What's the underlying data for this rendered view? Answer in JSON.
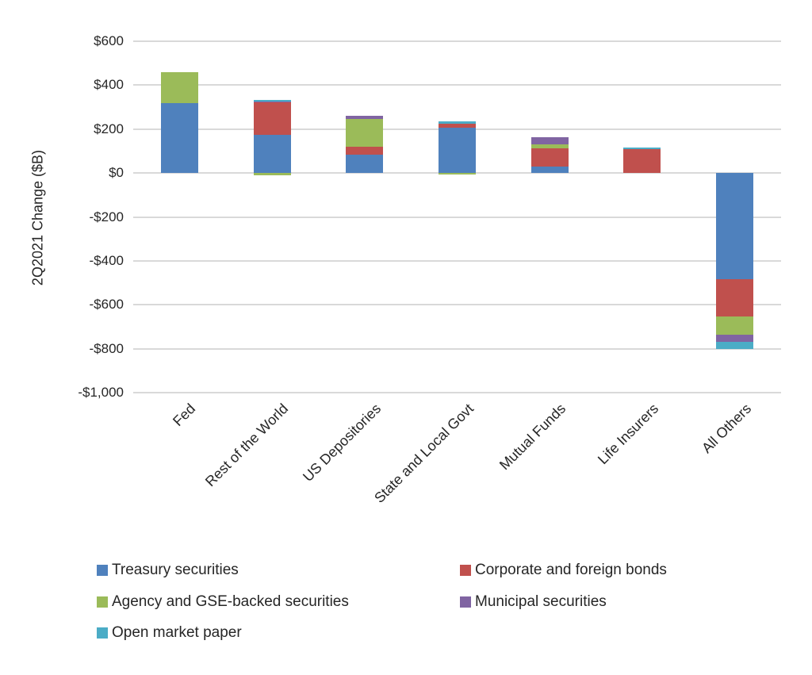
{
  "chart_data": {
    "type": "bar",
    "stacked": true,
    "title": "",
    "ylabel": "2Q2021 Change ($B)",
    "xlabel": "",
    "ylim": [
      -1000,
      600
    ],
    "ytick_step": 200,
    "yticks": [
      {
        "value": 600,
        "label": "$600"
      },
      {
        "value": 400,
        "label": "$400"
      },
      {
        "value": 200,
        "label": "$200"
      },
      {
        "value": 0,
        "label": "$0"
      },
      {
        "value": -200,
        "label": "-$200"
      },
      {
        "value": -400,
        "label": "-$400"
      },
      {
        "value": -600,
        "label": "-$600"
      },
      {
        "value": -800,
        "label": "-$800"
      },
      {
        "value": -1000,
        "label": "-$1,000"
      }
    ],
    "grid": true,
    "legend_position": "bottom",
    "categories": [
      "Fed",
      "Rest of the World",
      "US Depositories",
      "State and Local Govt",
      "Mutual Funds",
      "Life Insurers",
      "All Others"
    ],
    "series": [
      {
        "name": "Treasury securities",
        "color": "#4F81BD",
        "values": [
          320,
          175,
          82,
          205,
          28,
          0,
          -485
        ]
      },
      {
        "name": "Corporate and foreign bonds",
        "color": "#C0504D",
        "values": [
          0,
          148,
          36,
          20,
          85,
          110,
          -170
        ]
      },
      {
        "name": "Agency and GSE-backed securities",
        "color": "#9BBB59",
        "values": [
          140,
          -12,
          128,
          -8,
          18,
          0,
          -80
        ]
      },
      {
        "name": "Municipal securities",
        "color": "#8064A2",
        "values": [
          0,
          3,
          15,
          0,
          33,
          0,
          -35
        ]
      },
      {
        "name": "Open market paper",
        "color": "#4BACC6",
        "values": [
          0,
          6,
          0,
          12,
          0,
          5,
          -30
        ]
      }
    ]
  },
  "colors": {
    "gridline": "#d9d9d9",
    "text": "#262626"
  }
}
